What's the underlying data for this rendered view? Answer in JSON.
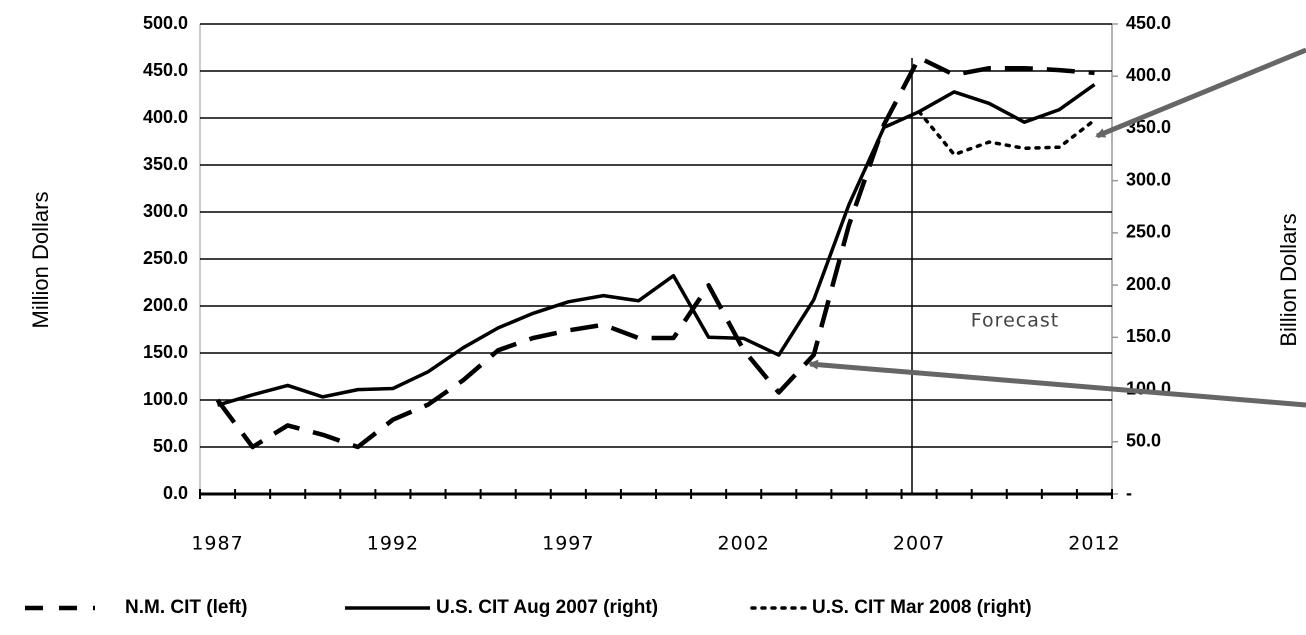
{
  "chart_data": {
    "type": "line",
    "categories": [
      "1987",
      null,
      null,
      null,
      null,
      "1992",
      null,
      null,
      null,
      null,
      "1997",
      null,
      null,
      null,
      null,
      "2002",
      null,
      null,
      null,
      null,
      "2007",
      null,
      null,
      null,
      null,
      "2012"
    ],
    "series": [
      {
        "name": "N.M. CIT (left)",
        "color": "#000000",
        "style": "dashed",
        "axis": "y",
        "values": [
          100,
          50,
          73,
          63,
          50,
          79,
          95,
          121,
          153,
          166,
          174,
          180,
          166,
          166,
          222,
          153,
          108,
          148,
          286,
          393,
          464,
          446,
          453,
          453,
          451,
          448
        ]
      },
      {
        "name": "U.S. CIT Aug 2007 (right)",
        "color": "#000000",
        "style": "solid",
        "axis": "y2",
        "values": [
          85,
          95,
          104,
          93,
          100,
          101,
          117,
          140,
          159,
          173,
          184,
          190,
          185,
          209,
          150,
          149,
          133,
          186,
          277,
          351,
          366,
          385,
          374,
          356,
          368,
          392
        ]
      },
      {
        "name": "U.S. CIT Mar 2008 (right)",
        "color": "#000000",
        "style": "dotted",
        "axis": "y2",
        "values": [
          null,
          null,
          null,
          null,
          null,
          null,
          null,
          null,
          null,
          null,
          null,
          null,
          null,
          null,
          null,
          null,
          null,
          null,
          null,
          null,
          366,
          325,
          337,
          331,
          332,
          358
        ]
      }
    ],
    "ylabel": "Million Dollars",
    "y2label": "Billion Dollars",
    "ylim": [
      0,
      500
    ],
    "yticks": [
      {
        "value": 0,
        "label": "0.0"
      },
      {
        "value": 50,
        "label": "50.0"
      },
      {
        "value": 100,
        "label": "100.0"
      },
      {
        "value": 150,
        "label": "150.0"
      },
      {
        "value": 200,
        "label": "200.0"
      },
      {
        "value": 250,
        "label": "250.0"
      },
      {
        "value": 300,
        "label": "300.0"
      },
      {
        "value": 350,
        "label": "350.0"
      },
      {
        "value": 400,
        "label": "400.0"
      },
      {
        "value": 450,
        "label": "450.0"
      },
      {
        "value": 500,
        "label": "500.0"
      }
    ],
    "y2lim": [
      0,
      450
    ],
    "y2ticks": [
      {
        "value": 0,
        "label": "-"
      },
      {
        "value": 50,
        "label": "50.0"
      },
      {
        "value": 100,
        "label": "100.0"
      },
      {
        "value": 150,
        "label": "150.0"
      },
      {
        "value": 200,
        "label": "200.0"
      },
      {
        "value": 250,
        "label": "250.0"
      },
      {
        "value": 300,
        "label": "300.0"
      },
      {
        "value": 350,
        "label": "350.0"
      },
      {
        "value": 400,
        "label": "400.0"
      },
      {
        "value": 450,
        "label": "450.0"
      }
    ],
    "grid": true,
    "legend": "bottom",
    "annotation": "Forecast"
  }
}
